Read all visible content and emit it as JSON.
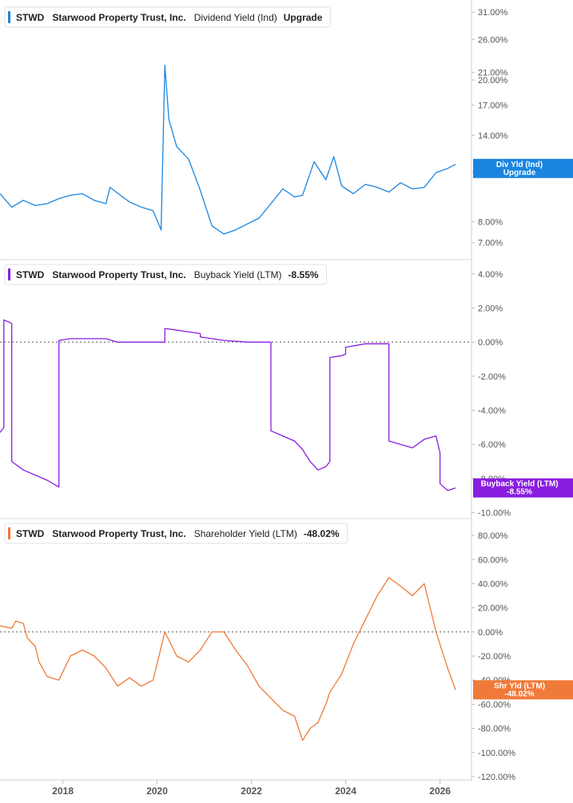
{
  "chart_data": [
    {
      "type": "line",
      "ticker": "STWD",
      "company": "Starwood Property Trust, Inc.",
      "metric": "Dividend Yield (Ind)",
      "current_value": "Upgrade",
      "badge": [
        "Div Yld (Ind)",
        "Upgrade"
      ],
      "color": "#1a85e0",
      "yscale": "log",
      "ylim": [
        6.5,
        32.5
      ],
      "yticks": [
        {
          "v": 31,
          "label": "31.00%"
        },
        {
          "v": 26,
          "label": "26.00%"
        },
        {
          "v": 21,
          "label": "21.00%"
        },
        {
          "v": 20,
          "label": "20.00%"
        },
        {
          "v": 17,
          "label": "17.00%"
        },
        {
          "v": 14,
          "label": "14.00%"
        },
        {
          "v": 11,
          "label": "11.00%"
        },
        {
          "v": 8,
          "label": "8.00%"
        },
        {
          "v": 7,
          "label": "7.00%"
        }
      ],
      "zero_line": false,
      "series": [
        {
          "x": [
            "2016-09",
            "2016-12",
            "2017-03",
            "2017-06",
            "2017-09",
            "2017-12",
            "2018-03",
            "2018-06",
            "2018-09",
            "2018-12",
            "2019-01",
            "2019-06",
            "2019-09",
            "2019-12",
            "2020-02",
            "2020-03",
            "2020-04",
            "2020-06",
            "2020-09",
            "2020-12",
            "2021-03",
            "2021-06",
            "2021-09",
            "2021-12",
            "2022-03",
            "2022-06",
            "2022-09",
            "2022-12",
            "2023-02",
            "2023-05",
            "2023-08",
            "2023-10",
            "2023-12",
            "2024-03",
            "2024-06",
            "2024-09",
            "2024-12",
            "2025-03",
            "2025-06",
            "2025-09",
            "2025-12",
            "2026-03",
            "2026-05"
          ],
          "y": [
            9.6,
            8.8,
            9.2,
            8.9,
            9.0,
            9.3,
            9.5,
            9.6,
            9.2,
            9.0,
            10.0,
            9.1,
            8.8,
            8.6,
            7.6,
            22.0,
            15.5,
            13.0,
            12.0,
            9.8,
            7.8,
            7.4,
            7.6,
            7.9,
            8.2,
            9.0,
            9.9,
            9.4,
            9.5,
            11.8,
            10.5,
            12.2,
            10.1,
            9.6,
            10.2,
            10.0,
            9.7,
            10.3,
            9.9,
            10.0,
            11.0,
            11.3,
            11.6
          ]
        }
      ]
    },
    {
      "type": "line",
      "ticker": "STWD",
      "company": "Starwood Property Trust, Inc.",
      "metric": "Buyback Yield (LTM)",
      "current_value": "-8.55%",
      "badge": [
        "Buyback Yield (LTM)",
        "-8.55%"
      ],
      "color": "#8a1ee0",
      "yscale": "linear",
      "ylim": [
        -10.3,
        4.6
      ],
      "yticks": [
        {
          "v": 4,
          "label": "4.00%"
        },
        {
          "v": 2,
          "label": "2.00%"
        },
        {
          "v": 0,
          "label": "0.00%"
        },
        {
          "v": -2,
          "label": "-2.00%"
        },
        {
          "v": -4,
          "label": "-4.00%"
        },
        {
          "v": -6,
          "label": "-6.00%"
        },
        {
          "v": -8,
          "label": "-8.00%"
        },
        {
          "v": -10,
          "label": "-10.00%"
        }
      ],
      "zero_line": true,
      "series": [
        {
          "x": [
            "2016-09",
            "2016-10",
            "2016-10",
            "2016-12",
            "2016-12",
            "2017-03",
            "2017-06",
            "2017-09",
            "2017-12",
            "2017-12",
            "2018-03",
            "2018-06",
            "2018-09",
            "2018-12",
            "2019-03",
            "2019-06",
            "2019-09",
            "2019-12",
            "2020-03",
            "2020-03",
            "2020-06",
            "2020-09",
            "2020-12",
            "2020-12",
            "2021-06",
            "2021-12",
            "2022-06",
            "2022-06",
            "2022-09",
            "2022-12",
            "2023-02",
            "2023-04",
            "2023-06",
            "2023-08",
            "2023-09",
            "2023-09",
            "2023-12",
            "2024-01",
            "2024-01",
            "2024-06",
            "2024-12",
            "2024-12",
            "2025-03",
            "2025-06",
            "2025-09",
            "2025-12",
            "2026-01",
            "2026-01",
            "2026-03",
            "2026-05"
          ],
          "y": [
            -5.3,
            -5.0,
            1.3,
            1.1,
            -7.0,
            -7.5,
            -7.8,
            -8.1,
            -8.5,
            0.1,
            0.2,
            0.2,
            0.2,
            0.2,
            0.0,
            0.0,
            0.0,
            0.0,
            0.0,
            0.8,
            0.7,
            0.6,
            0.5,
            0.3,
            0.1,
            0.0,
            0.0,
            -5.2,
            -5.5,
            -5.8,
            -6.3,
            -7.0,
            -7.5,
            -7.3,
            -7.0,
            -0.9,
            -0.8,
            -0.7,
            -0.3,
            -0.1,
            -0.1,
            -5.8,
            -6.0,
            -6.2,
            -5.7,
            -5.5,
            -6.5,
            -8.3,
            -8.7,
            -8.55
          ]
        }
      ]
    },
    {
      "type": "line",
      "ticker": "STWD",
      "company": "Starwood Property Trust, Inc.",
      "metric": "Shareholder Yield (LTM)",
      "current_value": "-48.02%",
      "badge": [
        "Shr Yld (LTM)",
        "-48.02%"
      ],
      "color": "#f07a3a",
      "yscale": "linear",
      "ylim": [
        -122,
        92
      ],
      "yticks": [
        {
          "v": 80,
          "label": "80.00%"
        },
        {
          "v": 60,
          "label": "60.00%"
        },
        {
          "v": 40,
          "label": "40.00%"
        },
        {
          "v": 20,
          "label": "20.00%"
        },
        {
          "v": 0,
          "label": "0.00%"
        },
        {
          "v": -20,
          "label": "-20.00%"
        },
        {
          "v": -40,
          "label": "-40.00%"
        },
        {
          "v": -60,
          "label": "-60.00%"
        },
        {
          "v": -80,
          "label": "-80.00%"
        },
        {
          "v": -100,
          "label": "-100.00%"
        },
        {
          "v": -120,
          "label": "-120.00%"
        }
      ],
      "zero_line": true,
      "series": [
        {
          "x": [
            "2016-09",
            "2016-12",
            "2017-01",
            "2017-03",
            "2017-04",
            "2017-06",
            "2017-07",
            "2017-09",
            "2017-12",
            "2018-03",
            "2018-06",
            "2018-09",
            "2018-12",
            "2019-03",
            "2019-06",
            "2019-09",
            "2019-12",
            "2020-03",
            "2020-06",
            "2020-09",
            "2020-12",
            "2021-03",
            "2021-06",
            "2021-09",
            "2021-12",
            "2022-03",
            "2022-06",
            "2022-09",
            "2022-12",
            "2023-02",
            "2023-04",
            "2023-06",
            "2023-08",
            "2023-09",
            "2023-12",
            "2024-03",
            "2024-06",
            "2024-09",
            "2024-12",
            "2025-03",
            "2025-06",
            "2025-09",
            "2025-12",
            "2026-03",
            "2026-05"
          ],
          "y": [
            5.0,
            3.0,
            9.0,
            7.0,
            -5.0,
            -12.0,
            -25.0,
            -37.0,
            -40.0,
            -20.0,
            -15.0,
            -20.0,
            -30.0,
            -45.0,
            -38.0,
            -45.0,
            -40.0,
            0.0,
            -20.0,
            -25.0,
            -15.0,
            0.0,
            0.0,
            -15.0,
            -28.0,
            -45.0,
            -55.0,
            -65.0,
            -70.0,
            -90.0,
            -80.0,
            -75.0,
            -60.0,
            -50.0,
            -35.0,
            -10.0,
            10.0,
            30.0,
            45.0,
            38.0,
            30.0,
            40.0,
            0.0,
            -30.0,
            -48.02
          ]
        }
      ]
    }
  ],
  "x_axis": {
    "ticks": [
      {
        "v": "2018-01",
        "label": "2018"
      },
      {
        "v": "2020-01",
        "label": "2020"
      },
      {
        "v": "2022-01",
        "label": "2022"
      },
      {
        "v": "2024-01",
        "label": "2024"
      },
      {
        "v": "2026-01",
        "label": "2026"
      }
    ]
  }
}
